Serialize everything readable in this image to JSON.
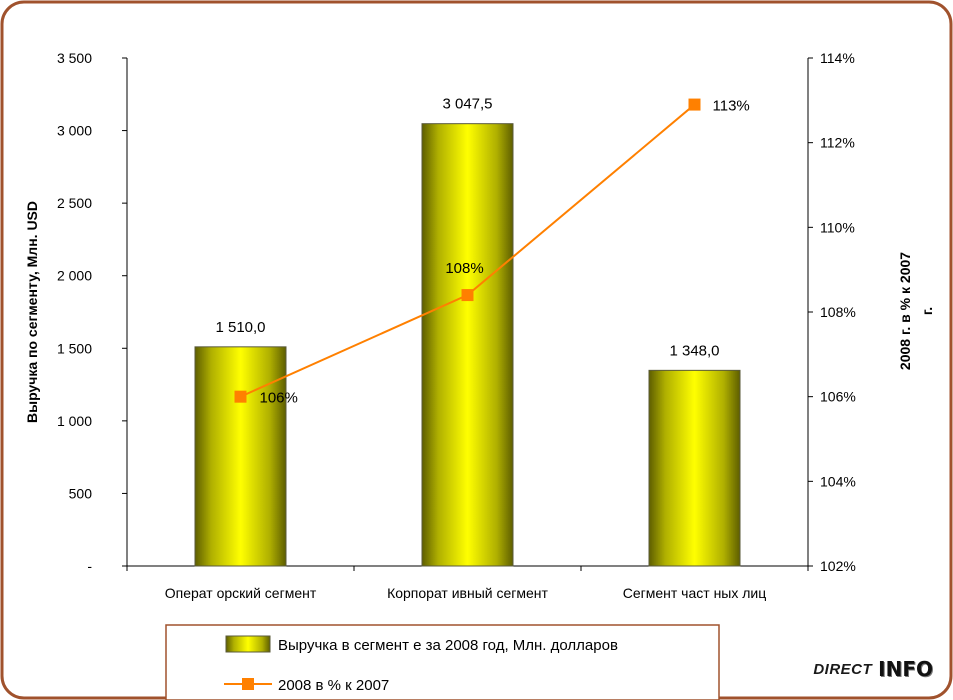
{
  "chart_data": {
    "type": "bar",
    "categories": [
      "Операт орский сегмент",
      "Корпорат ивный сегмент",
      "Сегмент част ных лиц"
    ],
    "series": [
      {
        "name": "Выручка в сегмент е за 2008 год, Млн. долларов",
        "type": "bar",
        "axis": "left",
        "values": [
          1510.0,
          3047.5,
          1348.0
        ],
        "labels": [
          "1 510,0",
          "3 047,5",
          "1 348,0"
        ],
        "color": "#d9d900"
      },
      {
        "name": "2008 в % к 2007",
        "type": "line",
        "axis": "right",
        "values": [
          106.0,
          108.4,
          112.9
        ],
        "labels": [
          "106%",
          "108%",
          "113%"
        ],
        "color": "#ff8000"
      }
    ],
    "y_left": {
      "label": "Выручка по сегменту, Млн. USD",
      "range": [
        0,
        3500
      ],
      "ticks": [
        0,
        500,
        1000,
        1500,
        2000,
        2500,
        3000,
        3500
      ],
      "tick_labels": [
        "-",
        "500",
        "1 000",
        "1 500",
        "2 000",
        "2 500",
        "3 000",
        "3 500"
      ]
    },
    "y_right": {
      "label_lines": [
        "2008 г. в % к 2007",
        "г."
      ],
      "range": [
        102,
        114
      ],
      "ticks": [
        102,
        104,
        106,
        108,
        110,
        112,
        114
      ],
      "tick_labels": [
        "102%",
        "104%",
        "106%",
        "108%",
        "110%",
        "112%",
        "114%"
      ]
    },
    "grid": false,
    "legend_position": "bottom"
  },
  "colors": {
    "frame_border": "#a0522d",
    "bar_fill": "#d9d900",
    "line": "#ff8000",
    "legend_border": "#a0522d"
  },
  "logo": {
    "part1": "DIRECT",
    "part2": "INFO"
  }
}
